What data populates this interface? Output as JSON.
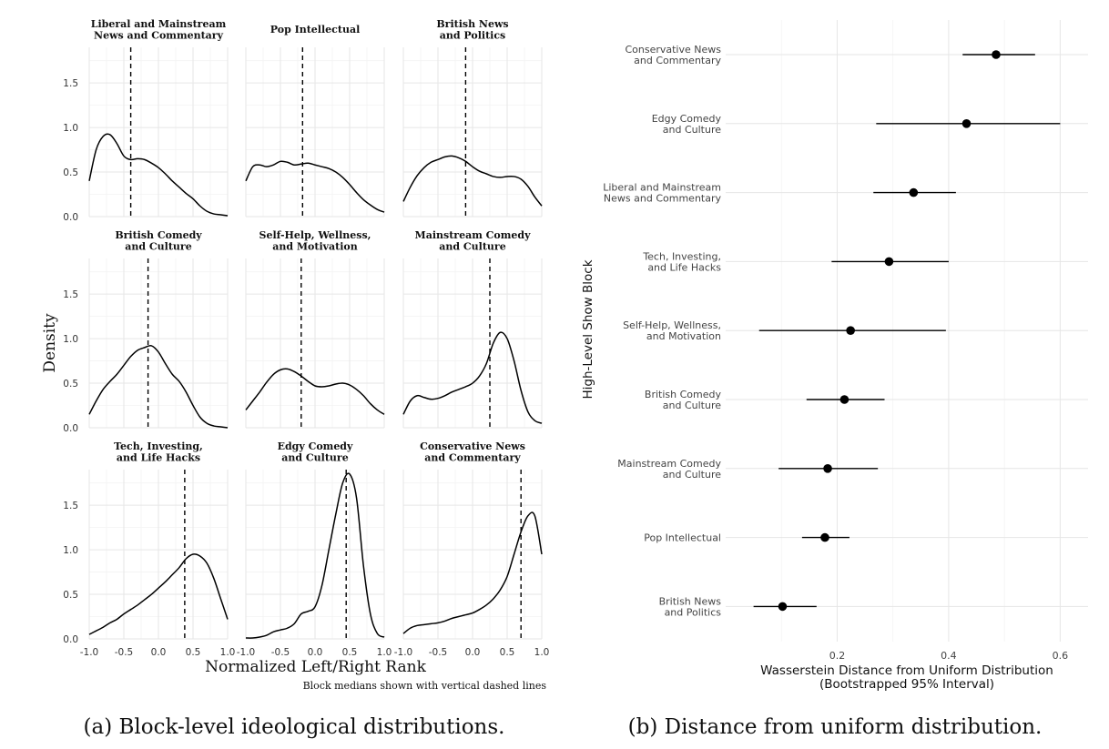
{
  "chart_data": [
    {
      "type": "line",
      "facet_layout": "3x3",
      "xlabel": "Normalized Left/Right Rank",
      "ylabel": "Density",
      "note": "Block medians shown with vertical dashed lines",
      "caption": "(a) Block-level ideological distributions.",
      "xlim": [
        -1.0,
        1.0
      ],
      "ylim": [
        0,
        1.9
      ],
      "x_ticks": [
        "-1.0",
        "-0.5",
        "0.0",
        "0.5",
        "1.0"
      ],
      "y_ticks": [
        "0.0",
        "0.5",
        "1.0",
        "1.5"
      ],
      "x_tick_values": [
        -1.0,
        -0.5,
        0.0,
        0.5,
        1.0
      ],
      "y_tick_values": [
        0.0,
        0.5,
        1.0,
        1.5
      ],
      "grid": true,
      "panels": [
        {
          "title": [
            "Liberal and Mainstream",
            "News and Commentary"
          ],
          "median": -0.4,
          "x": [
            -1.0,
            -0.9,
            -0.8,
            -0.7,
            -0.6,
            -0.5,
            -0.4,
            -0.3,
            -0.2,
            -0.1,
            0.0,
            0.1,
            0.2,
            0.3,
            0.4,
            0.5,
            0.6,
            0.7,
            0.8,
            0.9,
            1.0
          ],
          "y": [
            0.4,
            0.75,
            0.9,
            0.92,
            0.82,
            0.68,
            0.64,
            0.65,
            0.64,
            0.6,
            0.55,
            0.48,
            0.4,
            0.33,
            0.26,
            0.2,
            0.12,
            0.06,
            0.03,
            0.02,
            0.01
          ]
        },
        {
          "title": [
            "Pop Intellectual"
          ],
          "median": -0.18,
          "x": [
            -1.0,
            -0.9,
            -0.8,
            -0.7,
            -0.6,
            -0.5,
            -0.4,
            -0.3,
            -0.2,
            -0.1,
            0.0,
            0.1,
            0.2,
            0.3,
            0.4,
            0.5,
            0.6,
            0.7,
            0.8,
            0.9,
            1.0
          ],
          "y": [
            0.4,
            0.56,
            0.58,
            0.56,
            0.58,
            0.62,
            0.61,
            0.58,
            0.59,
            0.6,
            0.58,
            0.56,
            0.54,
            0.5,
            0.44,
            0.36,
            0.27,
            0.19,
            0.13,
            0.08,
            0.05
          ]
        },
        {
          "title": [
            "British News",
            "and Politics"
          ],
          "median": -0.1,
          "x": [
            -1.0,
            -0.9,
            -0.8,
            -0.7,
            -0.6,
            -0.5,
            -0.4,
            -0.3,
            -0.2,
            -0.1,
            0.0,
            0.1,
            0.2,
            0.3,
            0.4,
            0.5,
            0.6,
            0.7,
            0.8,
            0.9,
            1.0
          ],
          "y": [
            0.17,
            0.33,
            0.46,
            0.55,
            0.61,
            0.64,
            0.67,
            0.68,
            0.66,
            0.62,
            0.56,
            0.51,
            0.48,
            0.45,
            0.44,
            0.45,
            0.45,
            0.42,
            0.34,
            0.22,
            0.12
          ]
        },
        {
          "title": [
            "British Comedy",
            "and Culture"
          ],
          "median": -0.15,
          "x": [
            -1.0,
            -0.9,
            -0.8,
            -0.7,
            -0.6,
            -0.5,
            -0.4,
            -0.3,
            -0.2,
            -0.1,
            0.0,
            0.1,
            0.2,
            0.3,
            0.4,
            0.5,
            0.6,
            0.7,
            0.8,
            0.9,
            1.0
          ],
          "y": [
            0.15,
            0.3,
            0.43,
            0.52,
            0.6,
            0.7,
            0.8,
            0.87,
            0.9,
            0.92,
            0.85,
            0.72,
            0.6,
            0.52,
            0.4,
            0.25,
            0.12,
            0.05,
            0.02,
            0.01,
            0.0
          ]
        },
        {
          "title": [
            "Self-Help, Wellness,",
            "and Motivation"
          ],
          "median": -0.2,
          "x": [
            -1.0,
            -0.9,
            -0.8,
            -0.7,
            -0.6,
            -0.5,
            -0.4,
            -0.3,
            -0.2,
            -0.1,
            0.0,
            0.1,
            0.2,
            0.3,
            0.4,
            0.5,
            0.6,
            0.7,
            0.8,
            0.9,
            1.0
          ],
          "y": [
            0.2,
            0.3,
            0.4,
            0.51,
            0.6,
            0.65,
            0.66,
            0.63,
            0.58,
            0.52,
            0.47,
            0.46,
            0.47,
            0.49,
            0.5,
            0.48,
            0.43,
            0.36,
            0.27,
            0.2,
            0.15
          ]
        },
        {
          "title": [
            "Mainstream Comedy",
            "and Culture"
          ],
          "median": 0.25,
          "x": [
            -1.0,
            -0.9,
            -0.8,
            -0.7,
            -0.6,
            -0.5,
            -0.4,
            -0.3,
            -0.2,
            -0.1,
            0.0,
            0.1,
            0.2,
            0.3,
            0.4,
            0.5,
            0.6,
            0.7,
            0.8,
            0.9,
            1.0
          ],
          "y": [
            0.15,
            0.3,
            0.36,
            0.34,
            0.32,
            0.33,
            0.36,
            0.4,
            0.43,
            0.46,
            0.5,
            0.58,
            0.72,
            0.95,
            1.07,
            1.0,
            0.75,
            0.42,
            0.18,
            0.08,
            0.05
          ]
        },
        {
          "title": [
            "Tech, Investing,",
            "and Life Hacks"
          ],
          "median": 0.38,
          "x": [
            -1.0,
            -0.9,
            -0.8,
            -0.7,
            -0.6,
            -0.5,
            -0.4,
            -0.3,
            -0.2,
            -0.1,
            0.0,
            0.1,
            0.2,
            0.3,
            0.4,
            0.5,
            0.6,
            0.7,
            0.8,
            0.9,
            1.0
          ],
          "y": [
            0.05,
            0.09,
            0.13,
            0.18,
            0.22,
            0.28,
            0.33,
            0.38,
            0.44,
            0.5,
            0.57,
            0.64,
            0.72,
            0.8,
            0.9,
            0.95,
            0.93,
            0.85,
            0.68,
            0.45,
            0.22
          ]
        },
        {
          "title": [
            "Edgy Comedy",
            "and Culture"
          ],
          "median": 0.45,
          "x": [
            -1.0,
            -0.9,
            -0.8,
            -0.7,
            -0.6,
            -0.5,
            -0.4,
            -0.3,
            -0.2,
            -0.1,
            0.0,
            0.1,
            0.2,
            0.3,
            0.4,
            0.5,
            0.6,
            0.7,
            0.8,
            0.9,
            1.0
          ],
          "y": [
            0.01,
            0.01,
            0.02,
            0.04,
            0.08,
            0.1,
            0.12,
            0.17,
            0.28,
            0.31,
            0.36,
            0.6,
            1.0,
            1.4,
            1.75,
            1.85,
            1.58,
            0.82,
            0.28,
            0.06,
            0.02
          ]
        },
        {
          "title": [
            "Conservative News",
            "and Commentary"
          ],
          "median": 0.7,
          "x": [
            -1.0,
            -0.9,
            -0.8,
            -0.7,
            -0.6,
            -0.5,
            -0.4,
            -0.3,
            -0.2,
            -0.1,
            0.0,
            0.1,
            0.2,
            0.3,
            0.4,
            0.5,
            0.6,
            0.7,
            0.8,
            0.9,
            1.0
          ],
          "y": [
            0.06,
            0.12,
            0.15,
            0.16,
            0.17,
            0.18,
            0.2,
            0.23,
            0.25,
            0.27,
            0.29,
            0.33,
            0.38,
            0.45,
            0.55,
            0.7,
            0.95,
            1.2,
            1.38,
            1.38,
            0.95
          ]
        }
      ]
    },
    {
      "type": "scatter",
      "subtype": "point-interval",
      "ylabel": "High-Level Show Block",
      "xlabel_lines": [
        "Wasserstein Distance from Uniform Distribution",
        "(Bootstrapped 95% Interval)"
      ],
      "caption": "(b) Distance from uniform distribution.",
      "xlim": [
        0.0,
        0.65
      ],
      "x_ticks": [
        "0.2",
        "0.4",
        "0.6"
      ],
      "x_tick_values": [
        0.2,
        0.4,
        0.6
      ],
      "grid": true,
      "rows": [
        {
          "label": [
            "Conservative News",
            "and Commentary"
          ],
          "estimate": 0.485,
          "lower": 0.425,
          "upper": 0.555
        },
        {
          "label": [
            "Edgy Comedy",
            "and Culture"
          ],
          "estimate": 0.432,
          "lower": 0.27,
          "upper": 0.6
        },
        {
          "label": [
            "Liberal and Mainstream",
            "News and Commentary"
          ],
          "estimate": 0.337,
          "lower": 0.265,
          "upper": 0.413
        },
        {
          "label": [
            "Tech, Investing,",
            "and Life Hacks"
          ],
          "estimate": 0.293,
          "lower": 0.19,
          "upper": 0.4
        },
        {
          "label": [
            "Self-Help, Wellness,",
            "and Motivation"
          ],
          "estimate": 0.224,
          "lower": 0.06,
          "upper": 0.395
        },
        {
          "label": [
            "British Comedy",
            "and Culture"
          ],
          "estimate": 0.213,
          "lower": 0.145,
          "upper": 0.285
        },
        {
          "label": [
            "Mainstream Comedy",
            "and Culture"
          ],
          "estimate": 0.183,
          "lower": 0.095,
          "upper": 0.273
        },
        {
          "label": [
            "Pop Intellectual"
          ],
          "estimate": 0.178,
          "lower": 0.137,
          "upper": 0.222
        },
        {
          "label": [
            "British News",
            "and Politics"
          ],
          "estimate": 0.102,
          "lower": 0.05,
          "upper": 0.163
        }
      ]
    }
  ]
}
